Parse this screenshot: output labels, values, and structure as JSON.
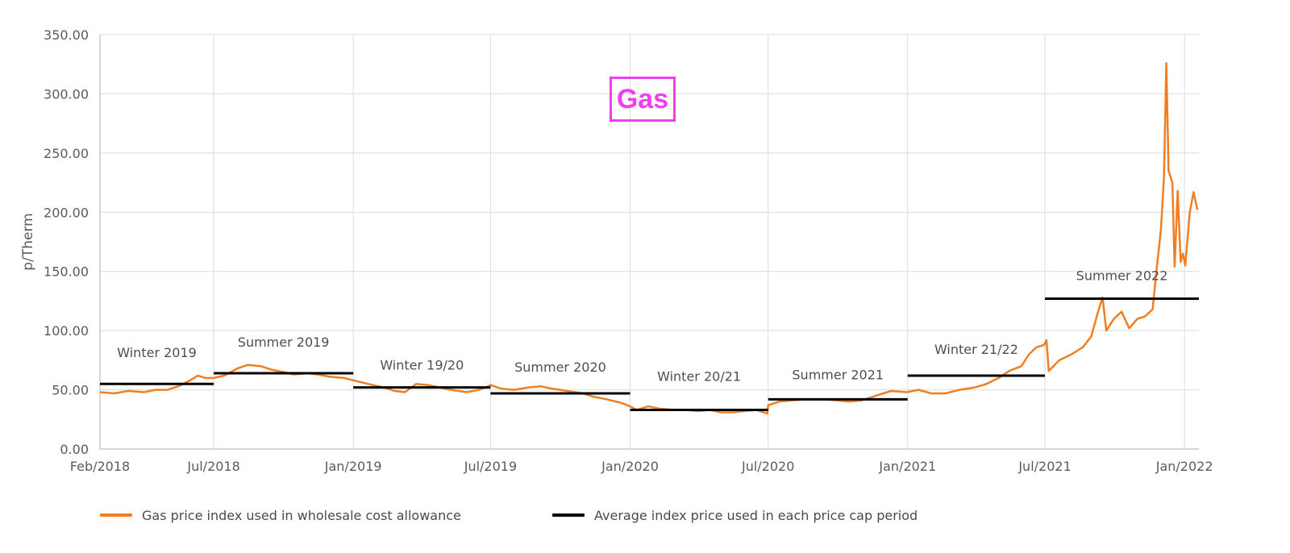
{
  "badge": {
    "label": "Gas",
    "color": "#f13ff0"
  },
  "legend": {
    "gas_label": "Gas price index used in wholesale cost allowance",
    "avg_label": "Average index price used in each price cap period"
  },
  "colors": {
    "gas_line": "#ef7f22",
    "avg_line": "#000000"
  },
  "chart_data": {
    "type": "line",
    "ylabel": "p/Therm",
    "ylim": [
      0,
      350
    ],
    "yticks": [
      "0.00",
      "50.00",
      "100.00",
      "150.00",
      "200.00",
      "250.00",
      "300.00",
      "350.00"
    ],
    "xlim": [
      "2018-02-01",
      "2022-01-20"
    ],
    "xticks": [
      {
        "date": "2018-02-01",
        "label": "Feb/2018"
      },
      {
        "date": "2018-07-01",
        "label": "Jul/2018"
      },
      {
        "date": "2019-01-01",
        "label": "Jan/2019"
      },
      {
        "date": "2019-07-01",
        "label": "Jul/2019"
      },
      {
        "date": "2020-01-01",
        "label": "Jan/2020"
      },
      {
        "date": "2020-07-01",
        "label": "Jul/2020"
      },
      {
        "date": "2021-01-01",
        "label": "Jan/2021"
      },
      {
        "date": "2021-07-01",
        "label": "Jul/2021"
      },
      {
        "date": "2022-01-01",
        "label": "Jan/2022"
      }
    ],
    "grid": true,
    "legend_position": "bottom",
    "series": [
      {
        "name": "Gas price index used in wholesale cost allowance",
        "points": [
          [
            "2018-02-01",
            48
          ],
          [
            "2018-02-20",
            47
          ],
          [
            "2018-03-10",
            49
          ],
          [
            "2018-03-31",
            48
          ],
          [
            "2018-04-15",
            50
          ],
          [
            "2018-05-01",
            50
          ],
          [
            "2018-05-15",
            53
          ],
          [
            "2018-05-31",
            58
          ],
          [
            "2018-06-10",
            62
          ],
          [
            "2018-06-20",
            60
          ],
          [
            "2018-07-01",
            60
          ],
          [
            "2018-07-15",
            62
          ],
          [
            "2018-08-01",
            68
          ],
          [
            "2018-08-15",
            71
          ],
          [
            "2018-09-01",
            70
          ],
          [
            "2018-09-15",
            67
          ],
          [
            "2018-10-01",
            65
          ],
          [
            "2018-10-15",
            63
          ],
          [
            "2018-11-01",
            64
          ],
          [
            "2018-11-15",
            63
          ],
          [
            "2018-12-01",
            61
          ],
          [
            "2018-12-20",
            60
          ],
          [
            "2019-01-01",
            58
          ],
          [
            "2019-01-20",
            55
          ],
          [
            "2019-02-10",
            52
          ],
          [
            "2019-02-25",
            49
          ],
          [
            "2019-03-10",
            48
          ],
          [
            "2019-03-25",
            55
          ],
          [
            "2019-04-10",
            54
          ],
          [
            "2019-04-25",
            52
          ],
          [
            "2019-05-10",
            50
          ],
          [
            "2019-05-31",
            48
          ],
          [
            "2019-06-15",
            50
          ],
          [
            "2019-06-25",
            52
          ],
          [
            "2019-07-01",
            54
          ],
          [
            "2019-07-15",
            51
          ],
          [
            "2019-08-01",
            50
          ],
          [
            "2019-08-20",
            52
          ],
          [
            "2019-09-05",
            53
          ],
          [
            "2019-09-20",
            51
          ],
          [
            "2019-10-10",
            49
          ],
          [
            "2019-10-31",
            47
          ],
          [
            "2019-11-15",
            44
          ],
          [
            "2019-12-01",
            42
          ],
          [
            "2019-12-20",
            39
          ],
          [
            "2020-01-01",
            36
          ],
          [
            "2020-01-10",
            33
          ],
          [
            "2020-01-25",
            36
          ],
          [
            "2020-02-10",
            34
          ],
          [
            "2020-02-28",
            33
          ],
          [
            "2020-03-15",
            33
          ],
          [
            "2020-03-31",
            32
          ],
          [
            "2020-04-15",
            33
          ],
          [
            "2020-04-30",
            31
          ],
          [
            "2020-05-15",
            31
          ],
          [
            "2020-05-31",
            32
          ],
          [
            "2020-06-15",
            33
          ],
          [
            "2020-06-30",
            30
          ],
          [
            "2020-07-01",
            37
          ],
          [
            "2020-07-15",
            40
          ],
          [
            "2020-08-01",
            41
          ],
          [
            "2020-08-20",
            42
          ],
          [
            "2020-09-10",
            42
          ],
          [
            "2020-09-30",
            41
          ],
          [
            "2020-10-15",
            40
          ],
          [
            "2020-11-01",
            41
          ],
          [
            "2020-11-20",
            45
          ],
          [
            "2020-12-10",
            49
          ],
          [
            "2020-12-31",
            48
          ],
          [
            "2021-01-15",
            50
          ],
          [
            "2021-02-01",
            47
          ],
          [
            "2021-02-20",
            47
          ],
          [
            "2021-03-10",
            50
          ],
          [
            "2021-03-31",
            52
          ],
          [
            "2021-04-15",
            55
          ],
          [
            "2021-05-01",
            60
          ],
          [
            "2021-05-15",
            66
          ],
          [
            "2021-05-31",
            70
          ],
          [
            "2021-06-10",
            80
          ],
          [
            "2021-06-20",
            86
          ],
          [
            "2021-06-30",
            88
          ],
          [
            "2021-07-03",
            92
          ],
          [
            "2021-07-06",
            66
          ],
          [
            "2021-07-20",
            75
          ],
          [
            "2021-08-05",
            80
          ],
          [
            "2021-08-20",
            86
          ],
          [
            "2021-08-31",
            95
          ],
          [
            "2021-09-10",
            118
          ],
          [
            "2021-09-15",
            128
          ],
          [
            "2021-09-20",
            100
          ],
          [
            "2021-09-30",
            110
          ],
          [
            "2021-10-10",
            116
          ],
          [
            "2021-10-20",
            102
          ],
          [
            "2021-10-31",
            110
          ],
          [
            "2021-11-10",
            112
          ],
          [
            "2021-11-20",
            118
          ],
          [
            "2021-11-25",
            150
          ],
          [
            "2021-12-01",
            186
          ],
          [
            "2021-12-05",
            230
          ],
          [
            "2021-12-08",
            326
          ],
          [
            "2021-12-11",
            235
          ],
          [
            "2021-12-16",
            225
          ],
          [
            "2021-12-19",
            154
          ],
          [
            "2021-12-23",
            218
          ],
          [
            "2021-12-27",
            158
          ],
          [
            "2021-12-30",
            165
          ],
          [
            "2022-01-02",
            155
          ],
          [
            "2022-01-08",
            200
          ],
          [
            "2022-01-13",
            217
          ],
          [
            "2022-01-18",
            202
          ]
        ]
      },
      {
        "name": "Average index price used in each price cap period",
        "segments": [
          {
            "label": "Winter 2019",
            "start": "2018-02-01",
            "end": "2018-07-01",
            "value": 55
          },
          {
            "label": "Summer 2019",
            "start": "2018-07-01",
            "end": "2019-01-01",
            "value": 64
          },
          {
            "label": "Winter 19/20",
            "start": "2019-01-01",
            "end": "2019-07-01",
            "value": 52
          },
          {
            "label": "Summer 2020",
            "start": "2019-07-01",
            "end": "2020-01-01",
            "value": 47
          },
          {
            "label": "Winter 20/21",
            "start": "2020-01-01",
            "end": "2020-07-01",
            "value": 33
          },
          {
            "label": "Summer 2021",
            "start": "2020-07-01",
            "end": "2021-01-01",
            "value": 42
          },
          {
            "label": "Winter 21/22",
            "start": "2021-01-01",
            "end": "2021-07-01",
            "value": 62
          },
          {
            "label": "Summer 2022",
            "start": "2021-07-01",
            "end": "2022-01-20",
            "value": 127
          }
        ]
      }
    ]
  }
}
